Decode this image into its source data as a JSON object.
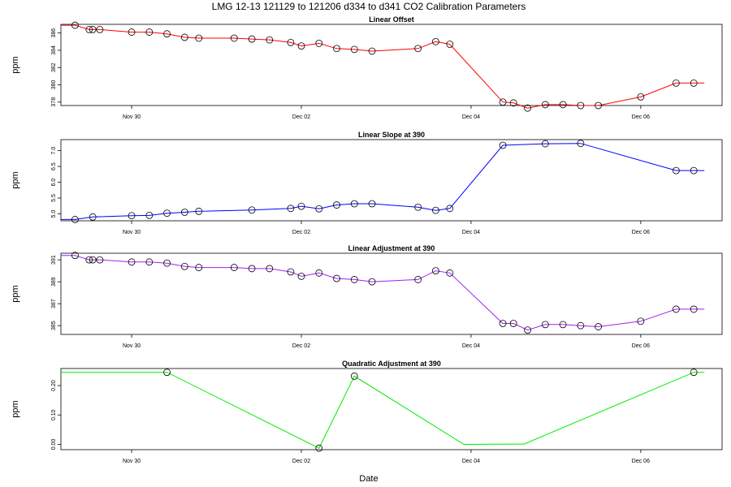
{
  "figure": {
    "title": "LMG   12-13    121129 to 121206    d334 to d341   CO2 Calibration Parameters",
    "xlabel": "Date"
  },
  "chart_data": [
    {
      "type": "line",
      "title": "Linear Offset",
      "ylabel": "ppm",
      "color": "#ff0000",
      "ylim": [
        377.6,
        387.0
      ],
      "xlim": [
        "2012-11-29T04:00",
        "2012-12-06T23:00"
      ],
      "x_ticks": [
        "Nov 30",
        "Dec 02",
        "Dec 04",
        "Dec 06"
      ],
      "x_tick_dates": [
        "2012-11-30",
        "2012-12-02",
        "2012-12-04",
        "2012-12-06"
      ],
      "y_ticks": [
        378,
        380,
        382,
        384,
        386
      ],
      "line_start": {
        "x": "2012-11-29T04:00",
        "y": 386.9
      },
      "line_end": {
        "x": "2012-12-06T18:00",
        "y": 380.2
      },
      "points": [
        {
          "x": "2012-11-29T08:00",
          "y": 386.9
        },
        {
          "x": "2012-11-29T12:00",
          "y": 386.4
        },
        {
          "x": "2012-11-29T13:00",
          "y": 386.4
        },
        {
          "x": "2012-11-29T15:00",
          "y": 386.4
        },
        {
          "x": "2012-11-30T00:00",
          "y": 386.1
        },
        {
          "x": "2012-11-30T05:00",
          "y": 386.1
        },
        {
          "x": "2012-11-30T10:00",
          "y": 385.9
        },
        {
          "x": "2012-11-30T15:00",
          "y": 385.5
        },
        {
          "x": "2012-11-30T19:00",
          "y": 385.4
        },
        {
          "x": "2012-12-01T05:00",
          "y": 385.4
        },
        {
          "x": "2012-12-01T10:00",
          "y": 385.3
        },
        {
          "x": "2012-12-01T15:00",
          "y": 385.2
        },
        {
          "x": "2012-12-01T21:00",
          "y": 384.9
        },
        {
          "x": "2012-12-02T00:00",
          "y": 384.5
        },
        {
          "x": "2012-12-02T05:00",
          "y": 384.8
        },
        {
          "x": "2012-12-02T10:00",
          "y": 384.2
        },
        {
          "x": "2012-12-02T15:00",
          "y": 384.1
        },
        {
          "x": "2012-12-02T20:00",
          "y": 383.9
        },
        {
          "x": "2012-12-03T09:00",
          "y": 384.2
        },
        {
          "x": "2012-12-03T14:00",
          "y": 385.0
        },
        {
          "x": "2012-12-03T18:00",
          "y": 384.7
        },
        {
          "x": "2012-12-04T09:00",
          "y": 378.0
        },
        {
          "x": "2012-12-04T12:00",
          "y": 377.9
        },
        {
          "x": "2012-12-04T16:00",
          "y": 377.3
        },
        {
          "x": "2012-12-04T21:00",
          "y": 377.7
        },
        {
          "x": "2012-12-05T02:00",
          "y": 377.7
        },
        {
          "x": "2012-12-05T07:00",
          "y": 377.6
        },
        {
          "x": "2012-12-05T12:00",
          "y": 377.6
        },
        {
          "x": "2012-12-06T00:00",
          "y": 378.6
        },
        {
          "x": "2012-12-06T10:00",
          "y": 380.2
        },
        {
          "x": "2012-12-06T15:00",
          "y": 380.2
        }
      ]
    },
    {
      "type": "line",
      "title": "Linear Slope at 390",
      "ylabel": "ppm",
      "color": "#0000ff",
      "ylim": [
        4.78,
        7.35
      ],
      "xlim": [
        "2012-11-29T04:00",
        "2012-12-06T23:00"
      ],
      "x_ticks": [
        "Nov 30",
        "Dec 02",
        "Dec 04",
        "Dec 06"
      ],
      "x_tick_dates": [
        "2012-11-30",
        "2012-12-02",
        "2012-12-04",
        "2012-12-06"
      ],
      "y_ticks": [
        "5.0",
        "5.5",
        "6.0",
        "6.5",
        "7.0"
      ],
      "line_start": {
        "x": "2012-11-29T04:00",
        "y": 4.82
      },
      "line_end": {
        "x": "2012-12-06T18:00",
        "y": 6.37
      },
      "points": [
        {
          "x": "2012-11-29T08:00",
          "y": 4.82
        },
        {
          "x": "2012-11-29T13:00",
          "y": 4.9
        },
        {
          "x": "2012-11-30T00:00",
          "y": 4.94
        },
        {
          "x": "2012-11-30T05:00",
          "y": 4.95
        },
        {
          "x": "2012-11-30T10:00",
          "y": 5.02
        },
        {
          "x": "2012-11-30T15:00",
          "y": 5.05
        },
        {
          "x": "2012-11-30T19:00",
          "y": 5.08
        },
        {
          "x": "2012-12-01T10:00",
          "y": 5.12
        },
        {
          "x": "2012-12-01T21:00",
          "y": 5.17
        },
        {
          "x": "2012-12-02T00:00",
          "y": 5.24
        },
        {
          "x": "2012-12-02T05:00",
          "y": 5.16
        },
        {
          "x": "2012-12-02T10:00",
          "y": 5.28
        },
        {
          "x": "2012-12-02T15:00",
          "y": 5.32
        },
        {
          "x": "2012-12-02T20:00",
          "y": 5.32
        },
        {
          "x": "2012-12-03T09:00",
          "y": 5.21
        },
        {
          "x": "2012-12-03T14:00",
          "y": 5.11
        },
        {
          "x": "2012-12-03T18:00",
          "y": 5.17
        },
        {
          "x": "2012-12-04T09:00",
          "y": 7.17
        },
        {
          "x": "2012-12-04T21:00",
          "y": 7.22
        },
        {
          "x": "2012-12-05T07:00",
          "y": 7.23
        },
        {
          "x": "2012-12-06T10:00",
          "y": 6.37
        },
        {
          "x": "2012-12-06T15:00",
          "y": 6.37
        }
      ]
    },
    {
      "type": "line",
      "title": "Linear Adjustment at 390",
      "ylabel": "ppm",
      "color": "#a020f0",
      "ylim": [
        384.2,
        391.6
      ],
      "xlim": [
        "2012-11-29T04:00",
        "2012-12-06T23:00"
      ],
      "x_ticks": [
        "Nov 30",
        "Dec 02",
        "Dec 04",
        "Dec 06"
      ],
      "x_tick_dates": [
        "2012-11-30",
        "2012-12-02",
        "2012-12-04",
        "2012-12-06"
      ],
      "y_ticks": [
        385,
        387,
        389,
        391
      ],
      "line_start": {
        "x": "2012-11-29T04:00",
        "y": 391.4
      },
      "line_end": {
        "x": "2012-12-06T18:00",
        "y": 386.5
      },
      "points": [
        {
          "x": "2012-11-29T08:00",
          "y": 391.4
        },
        {
          "x": "2012-11-29T12:00",
          "y": 391.0
        },
        {
          "x": "2012-11-29T13:00",
          "y": 391.0
        },
        {
          "x": "2012-11-29T15:00",
          "y": 391.0
        },
        {
          "x": "2012-11-30T00:00",
          "y": 390.8
        },
        {
          "x": "2012-11-30T05:00",
          "y": 390.8
        },
        {
          "x": "2012-11-30T10:00",
          "y": 390.7
        },
        {
          "x": "2012-11-30T15:00",
          "y": 390.4
        },
        {
          "x": "2012-11-30T19:00",
          "y": 390.3
        },
        {
          "x": "2012-12-01T05:00",
          "y": 390.3
        },
        {
          "x": "2012-12-01T10:00",
          "y": 390.2
        },
        {
          "x": "2012-12-01T15:00",
          "y": 390.2
        },
        {
          "x": "2012-12-01T21:00",
          "y": 389.9
        },
        {
          "x": "2012-12-02T00:00",
          "y": 389.5
        },
        {
          "x": "2012-12-02T05:00",
          "y": 389.8
        },
        {
          "x": "2012-12-02T10:00",
          "y": 389.3
        },
        {
          "x": "2012-12-02T15:00",
          "y": 389.2
        },
        {
          "x": "2012-12-02T20:00",
          "y": 389.0
        },
        {
          "x": "2012-12-03T09:00",
          "y": 389.2
        },
        {
          "x": "2012-12-03T14:00",
          "y": 390.0
        },
        {
          "x": "2012-12-03T18:00",
          "y": 389.8
        },
        {
          "x": "2012-12-04T09:00",
          "y": 385.2
        },
        {
          "x": "2012-12-04T12:00",
          "y": 385.2
        },
        {
          "x": "2012-12-04T16:00",
          "y": 384.6
        },
        {
          "x": "2012-12-04T21:00",
          "y": 385.1
        },
        {
          "x": "2012-12-05T02:00",
          "y": 385.1
        },
        {
          "x": "2012-12-05T07:00",
          "y": 385.0
        },
        {
          "x": "2012-12-05T12:00",
          "y": 384.9
        },
        {
          "x": "2012-12-06T00:00",
          "y": 385.4
        },
        {
          "x": "2012-12-06T10:00",
          "y": 386.5
        },
        {
          "x": "2012-12-06T15:00",
          "y": 386.5
        }
      ]
    },
    {
      "type": "line",
      "title": "Quadratic Adjustment at 390",
      "ylabel": "ppm",
      "color": "#00ee00",
      "ylim": [
        -0.018,
        0.258
      ],
      "xlim": [
        "2012-11-29T04:00",
        "2012-12-06T23:00"
      ],
      "x_ticks": [
        "Nov 30",
        "Dec 02",
        "Dec 04",
        "Dec 06"
      ],
      "x_tick_dates": [
        "2012-11-30",
        "2012-12-02",
        "2012-12-04",
        "2012-12-06"
      ],
      "y_ticks": [
        "0.00",
        "0.10",
        "0.20"
      ],
      "line_start": {
        "x": "2012-11-29T04:00",
        "y": 0.245
      },
      "line_end": {
        "x": "2012-12-06T18:00",
        "y": 0.245
      },
      "line_extra": [
        {
          "x": "2012-12-03T22:00",
          "y": 0.0
        },
        {
          "x": "2012-12-04T15:00",
          "y": 0.001
        }
      ],
      "points": [
        {
          "x": "2012-11-30T10:00",
          "y": 0.245
        },
        {
          "x": "2012-12-02T05:00",
          "y": -0.013
        },
        {
          "x": "2012-12-02T15:00",
          "y": 0.232
        },
        {
          "x": "2012-12-06T15:00",
          "y": 0.245
        }
      ]
    }
  ]
}
